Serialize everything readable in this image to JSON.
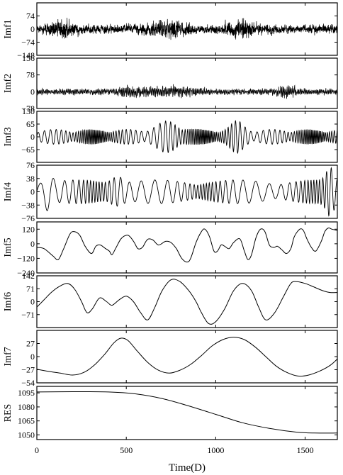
{
  "chart_data": {
    "type": "line",
    "x_axis": {
      "label": "Time(D)",
      "range": [
        0,
        1680
      ],
      "ticks": [
        0,
        500,
        1000,
        1500
      ],
      "tick_labels": [
        "0",
        "500",
        "1000",
        "1500"
      ]
    },
    "panels": [
      {
        "name": "Imf1",
        "ylim": [
          -148,
          148
        ],
        "yticks": [
          74,
          0,
          -74,
          -148
        ],
        "ytick_labels": [
          "74",
          "0",
          "−74",
          "−148"
        ],
        "signal": {
          "kind": "noise",
          "samples": 1680,
          "std": 36,
          "max_abs": 140,
          "period_days": 3,
          "bursts": [
            [
              730,
              120
            ],
            [
              150,
              80
            ],
            [
              1140,
              90
            ]
          ]
        }
      },
      {
        "name": "Imf2",
        "ylim": [
          -78,
          156
        ],
        "yticks": [
          156,
          78,
          0,
          -78
        ],
        "ytick_labels": [
          "156",
          "78",
          "0",
          "−78"
        ],
        "signal": {
          "kind": "noise",
          "samples": 1680,
          "std": 18,
          "max_abs": 78,
          "period_days": 6,
          "bursts": [
            [
              738,
              140
            ],
            [
              510,
              60
            ],
            [
              1390,
              60
            ]
          ]
        }
      },
      {
        "name": "Imf3",
        "ylim": [
          -130,
          130
        ],
        "yticks": [
          130,
          65,
          0,
          -65
        ],
        "ytick_labels": [
          "130",
          "65",
          "0",
          "−65"
        ],
        "signal": {
          "kind": "oscillation",
          "period_days": 28,
          "amp": 38,
          "bursts": [
            [
              740,
              90
            ],
            [
              1120,
              50
            ]
          ]
        }
      },
      {
        "name": "Imf4",
        "ylim": [
          -76,
          76
        ],
        "yticks": [
          76,
          38,
          0,
          -38,
          -76
        ],
        "ytick_labels": [
          "76",
          "38",
          "0",
          "−38",
          "−76"
        ],
        "signal": {
          "kind": "oscillation",
          "period_days": 62,
          "amp": 34,
          "bursts": [
            [
              60,
              30
            ],
            [
              450,
              40
            ],
            [
              1640,
              30
            ]
          ]
        }
      },
      {
        "name": "Imf5",
        "ylim": [
          -240,
          180
        ],
        "yticks": [
          120,
          0,
          -120,
          -240
        ],
        "ytick_labels": [
          "120",
          "0",
          "−120",
          "−240"
        ],
        "series_points": [
          [
            0,
            -30
          ],
          [
            40,
            -40
          ],
          [
            90,
            -100
          ],
          [
            120,
            -130
          ],
          [
            150,
            -40
          ],
          [
            185,
            80
          ],
          [
            210,
            100
          ],
          [
            240,
            70
          ],
          [
            270,
            -20
          ],
          [
            305,
            -80
          ],
          [
            330,
            -20
          ],
          [
            355,
            -10
          ],
          [
            380,
            -35
          ],
          [
            405,
            -60
          ],
          [
            420,
            -90
          ],
          [
            440,
            -40
          ],
          [
            470,
            40
          ],
          [
            500,
            70
          ],
          [
            520,
            60
          ],
          [
            545,
            10
          ],
          [
            565,
            -40
          ],
          [
            590,
            -30
          ],
          [
            610,
            20
          ],
          [
            625,
            40
          ],
          [
            650,
            30
          ],
          [
            680,
            -10
          ],
          [
            720,
            20
          ],
          [
            750,
            10
          ],
          [
            780,
            -40
          ],
          [
            810,
            -120
          ],
          [
            840,
            -150
          ],
          [
            860,
            -120
          ],
          [
            890,
            10
          ],
          [
            920,
            100
          ],
          [
            940,
            120
          ],
          [
            965,
            60
          ],
          [
            990,
            -60
          ],
          [
            1010,
            -60
          ],
          [
            1030,
            -10
          ],
          [
            1050,
            -20
          ],
          [
            1075,
            -40
          ],
          [
            1100,
            10
          ],
          [
            1135,
            40
          ],
          [
            1160,
            -60
          ],
          [
            1180,
            -130
          ],
          [
            1200,
            -90
          ],
          [
            1225,
            50
          ],
          [
            1250,
            120
          ],
          [
            1275,
            100
          ],
          [
            1300,
            -10
          ],
          [
            1325,
            -30
          ],
          [
            1345,
            -20
          ],
          [
            1370,
            -50
          ],
          [
            1395,
            -80
          ],
          [
            1420,
            -40
          ],
          [
            1440,
            60
          ],
          [
            1470,
            120
          ],
          [
            1490,
            110
          ],
          [
            1510,
            40
          ],
          [
            1535,
            -30
          ],
          [
            1560,
            -60
          ],
          [
            1590,
            20
          ],
          [
            1610,
            100
          ],
          [
            1630,
            130
          ],
          [
            1650,
            120
          ],
          [
            1680,
            110
          ]
        ]
      },
      {
        "name": "Imf6",
        "ylim": [
          -142,
          142
        ],
        "yticks": [
          142,
          71,
          0,
          -71
        ],
        "ytick_labels": [
          "142",
          "71",
          "0",
          "−71"
        ],
        "series_points": [
          [
            0,
            -30
          ],
          [
            40,
            10
          ],
          [
            80,
            50
          ],
          [
            120,
            80
          ],
          [
            170,
            100
          ],
          [
            210,
            70
          ],
          [
            250,
            0
          ],
          [
            280,
            -60
          ],
          [
            310,
            -40
          ],
          [
            350,
            20
          ],
          [
            390,
            0
          ],
          [
            420,
            -20
          ],
          [
            460,
            10
          ],
          [
            500,
            30
          ],
          [
            540,
            0
          ],
          [
            580,
            -60
          ],
          [
            620,
            -100
          ],
          [
            660,
            -30
          ],
          [
            700,
            60
          ],
          [
            750,
            120
          ],
          [
            800,
            110
          ],
          [
            850,
            60
          ],
          [
            890,
            0
          ],
          [
            920,
            -60
          ],
          [
            960,
            -120
          ],
          [
            1000,
            -110
          ],
          [
            1050,
            -40
          ],
          [
            1100,
            60
          ],
          [
            1150,
            100
          ],
          [
            1200,
            60
          ],
          [
            1240,
            -30
          ],
          [
            1280,
            -100
          ],
          [
            1330,
            -60
          ],
          [
            1380,
            30
          ],
          [
            1420,
            100
          ],
          [
            1450,
            110
          ],
          [
            1500,
            100
          ],
          [
            1550,
            80
          ],
          [
            1600,
            60
          ],
          [
            1640,
            50
          ],
          [
            1680,
            50
          ]
        ]
      },
      {
        "name": "Imf7",
        "ylim": [
          -54,
          54
        ],
        "yticks": [
          27,
          0,
          -27,
          -54
        ],
        "ytick_labels": [
          "27",
          "0",
          "−27",
          "−54"
        ],
        "series_points": [
          [
            0,
            -26
          ],
          [
            60,
            -30
          ],
          [
            130,
            -34
          ],
          [
            200,
            -38
          ],
          [
            260,
            -33
          ],
          [
            320,
            -18
          ],
          [
            380,
            5
          ],
          [
            430,
            28
          ],
          [
            470,
            38
          ],
          [
            510,
            33
          ],
          [
            560,
            12
          ],
          [
            620,
            -12
          ],
          [
            680,
            -28
          ],
          [
            740,
            -34
          ],
          [
            800,
            -28
          ],
          [
            860,
            -16
          ],
          [
            920,
            2
          ],
          [
            980,
            22
          ],
          [
            1040,
            35
          ],
          [
            1100,
            40
          ],
          [
            1160,
            35
          ],
          [
            1220,
            20
          ],
          [
            1280,
            0
          ],
          [
            1340,
            -20
          ],
          [
            1400,
            -33
          ],
          [
            1460,
            -40
          ],
          [
            1520,
            -38
          ],
          [
            1580,
            -30
          ],
          [
            1640,
            -18
          ],
          [
            1680,
            -5
          ]
        ]
      },
      {
        "name": "RES",
        "ylim": [
          1045,
          1102
        ],
        "yticks": [
          1095,
          1080,
          1065,
          1050
        ],
        "ytick_labels": [
          "1095",
          "1080",
          "1065",
          "1050"
        ],
        "series_points": [
          [
            0,
            1096
          ],
          [
            200,
            1096.3
          ],
          [
            400,
            1096
          ],
          [
            550,
            1094
          ],
          [
            700,
            1089
          ],
          [
            850,
            1081
          ],
          [
            1000,
            1072
          ],
          [
            1150,
            1063
          ],
          [
            1300,
            1057
          ],
          [
            1450,
            1053
          ],
          [
            1550,
            1052
          ],
          [
            1680,
            1052
          ]
        ]
      }
    ]
  }
}
